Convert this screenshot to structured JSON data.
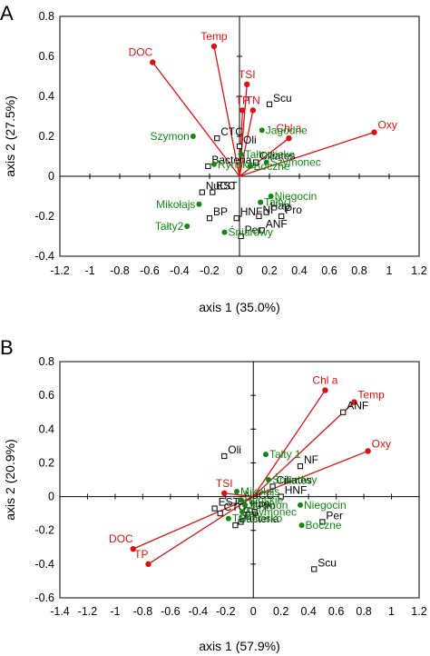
{
  "chart_data": [
    {
      "type": "scatter",
      "panel": "A",
      "xlabel": "axis 1 (35.0%)",
      "ylabel": "axis 2 (27.5%)",
      "xlim": [
        -1.2,
        1.2
      ],
      "ylim": [
        -0.4,
        0.8
      ],
      "x_ticks": [
        "-1.2",
        "-1",
        "-0.8",
        "-0.6",
        "-0.4",
        "-0.2",
        "0",
        "0.2",
        "0.4",
        "0.6",
        "0.8",
        "1",
        "1.2"
      ],
      "y_ticks": [
        "-0.4",
        "-0.2",
        "0",
        "0.2",
        "0.4",
        "0.6",
        "0.8"
      ],
      "colors": {
        "variables": "#dd1111",
        "lakes": "#118811",
        "taxa": "#000000"
      },
      "variables": [
        {
          "name": "DOC",
          "x": -0.58,
          "y": 0.57
        },
        {
          "name": "Temp",
          "x": -0.17,
          "y": 0.65
        },
        {
          "name": "TSI",
          "x": 0.05,
          "y": 0.46
        },
        {
          "name": "TP",
          "x": 0.02,
          "y": 0.33
        },
        {
          "name": "TN",
          "x": 0.09,
          "y": 0.33
        },
        {
          "name": "Chl a",
          "x": 0.33,
          "y": 0.19
        },
        {
          "name": "Oxy",
          "x": 0.9,
          "y": 0.22
        }
      ],
      "lakes": [
        {
          "name": "Szymon",
          "x": -0.31,
          "y": 0.2
        },
        {
          "name": "Jagodne",
          "x": 0.15,
          "y": 0.23
        },
        {
          "name": "Tałtowisko",
          "x": 0.01,
          "y": 0.11
        },
        {
          "name": "Ryńskie",
          "x": -0.17,
          "y": 0.06
        },
        {
          "name": "Boczne",
          "x": 0.07,
          "y": 0.05
        },
        {
          "name": "Szymonec",
          "x": 0.18,
          "y": 0.07
        },
        {
          "name": "Niegocin",
          "x": 0.21,
          "y": -0.1
        },
        {
          "name": "Tałty1",
          "x": 0.14,
          "y": -0.13
        },
        {
          "name": "Mikołajs",
          "x": -0.27,
          "y": -0.14
        },
        {
          "name": "Tałty2",
          "x": -0.35,
          "y": -0.25
        },
        {
          "name": "Śniardwy",
          "x": -0.1,
          "y": -0.28
        }
      ],
      "taxa": [
        {
          "name": "Scu",
          "x": 0.2,
          "y": 0.36
        },
        {
          "name": "CTC",
          "x": -0.15,
          "y": 0.19
        },
        {
          "name": "Oli",
          "x": 0.0,
          "y": 0.15
        },
        {
          "name": "Bacteria",
          "x": -0.21,
          "y": 0.05
        },
        {
          "name": "Ciliates",
          "x": 0.11,
          "y": 0.07
        },
        {
          "name": "NuCC",
          "x": -0.25,
          "y": -0.08
        },
        {
          "name": "EST",
          "x": -0.18,
          "y": -0.08
        },
        {
          "name": "BP",
          "x": -0.2,
          "y": -0.21
        },
        {
          "name": "HNF",
          "x": -0.02,
          "y": -0.21
        },
        {
          "name": "Hap",
          "x": 0.18,
          "y": -0.18
        },
        {
          "name": "NF",
          "x": 0.13,
          "y": -0.2
        },
        {
          "name": "Pro",
          "x": 0.28,
          "y": -0.2
        },
        {
          "name": "ANF",
          "x": 0.15,
          "y": -0.27
        },
        {
          "name": "Per",
          "x": 0.01,
          "y": -0.3
        }
      ]
    },
    {
      "type": "scatter",
      "panel": "B",
      "xlabel": "axis 1 (57.9%)",
      "ylabel": "axis 2 (20.9%)",
      "xlim": [
        -1.4,
        1.2
      ],
      "ylim": [
        -0.6,
        0.8
      ],
      "x_ticks": [
        "-1.4",
        "-1.2",
        "-1",
        "-0.8",
        "-0.6",
        "-0.4",
        "-0.2",
        "0",
        "0.2",
        "0.4",
        "0.6",
        "0.8",
        "1",
        "1.2"
      ],
      "y_ticks": [
        "-0.6",
        "-0.4",
        "-0.2",
        "0",
        "0.2",
        "0.4",
        "0.6",
        "0.8"
      ],
      "colors": {
        "variables": "#dd1111",
        "lakes": "#118811",
        "taxa": "#000000"
      },
      "variables": [
        {
          "name": "Chl a",
          "x": 0.52,
          "y": 0.63
        },
        {
          "name": "Temp",
          "x": 0.73,
          "y": 0.56
        },
        {
          "name": "Oxy",
          "x": 0.83,
          "y": 0.27
        },
        {
          "name": "TSI",
          "x": -0.21,
          "y": 0.02
        },
        {
          "name": "DOC",
          "x": -0.87,
          "y": -0.31
        },
        {
          "name": "TP",
          "x": -0.76,
          "y": -0.4
        }
      ],
      "lakes": [
        {
          "name": "Tałty 1",
          "x": 0.09,
          "y": 0.25
        },
        {
          "name": "Śniardwy",
          "x": 0.11,
          "y": 0.1
        },
        {
          "name": "Mikołajs",
          "x": -0.12,
          "y": 0.03
        },
        {
          "name": "Ryńskie",
          "x": -0.09,
          "y": -0.02
        },
        {
          "name": "Szymon",
          "x": -0.06,
          "y": -0.05
        },
        {
          "name": "Szymonec",
          "x": -0.08,
          "y": -0.09
        },
        {
          "name": "Niegocin",
          "x": 0.34,
          "y": -0.05
        },
        {
          "name": "Tałtowisko",
          "x": -0.18,
          "y": -0.13
        },
        {
          "name": "Boczne",
          "x": 0.35,
          "y": -0.17
        }
      ],
      "taxa": [
        {
          "name": "ANF",
          "x": 0.65,
          "y": 0.5
        },
        {
          "name": "Oli",
          "x": -0.21,
          "y": 0.24
        },
        {
          "name": "NF",
          "x": 0.34,
          "y": 0.18
        },
        {
          "name": "Ciliates",
          "x": 0.14,
          "y": 0.06
        },
        {
          "name": "HNF",
          "x": 0.2,
          "y": 0.0
        },
        {
          "name": "NuCC",
          "x": -0.09,
          "y": -0.03
        },
        {
          "name": "EST",
          "x": -0.28,
          "y": -0.07
        },
        {
          "name": "Hap",
          "x": -0.05,
          "y": -0.08
        },
        {
          "name": "Pro",
          "x": 0.01,
          "y": -0.09
        },
        {
          "name": "CTC",
          "x": -0.24,
          "y": -0.1
        },
        {
          "name": "BP",
          "x": -0.09,
          "y": -0.15
        },
        {
          "name": "Bacteria",
          "x": -0.13,
          "y": -0.17
        },
        {
          "name": "Per",
          "x": 0.5,
          "y": -0.15
        },
        {
          "name": "Scu",
          "x": 0.44,
          "y": -0.43
        }
      ]
    }
  ],
  "panel_labels": [
    "A",
    "B"
  ]
}
